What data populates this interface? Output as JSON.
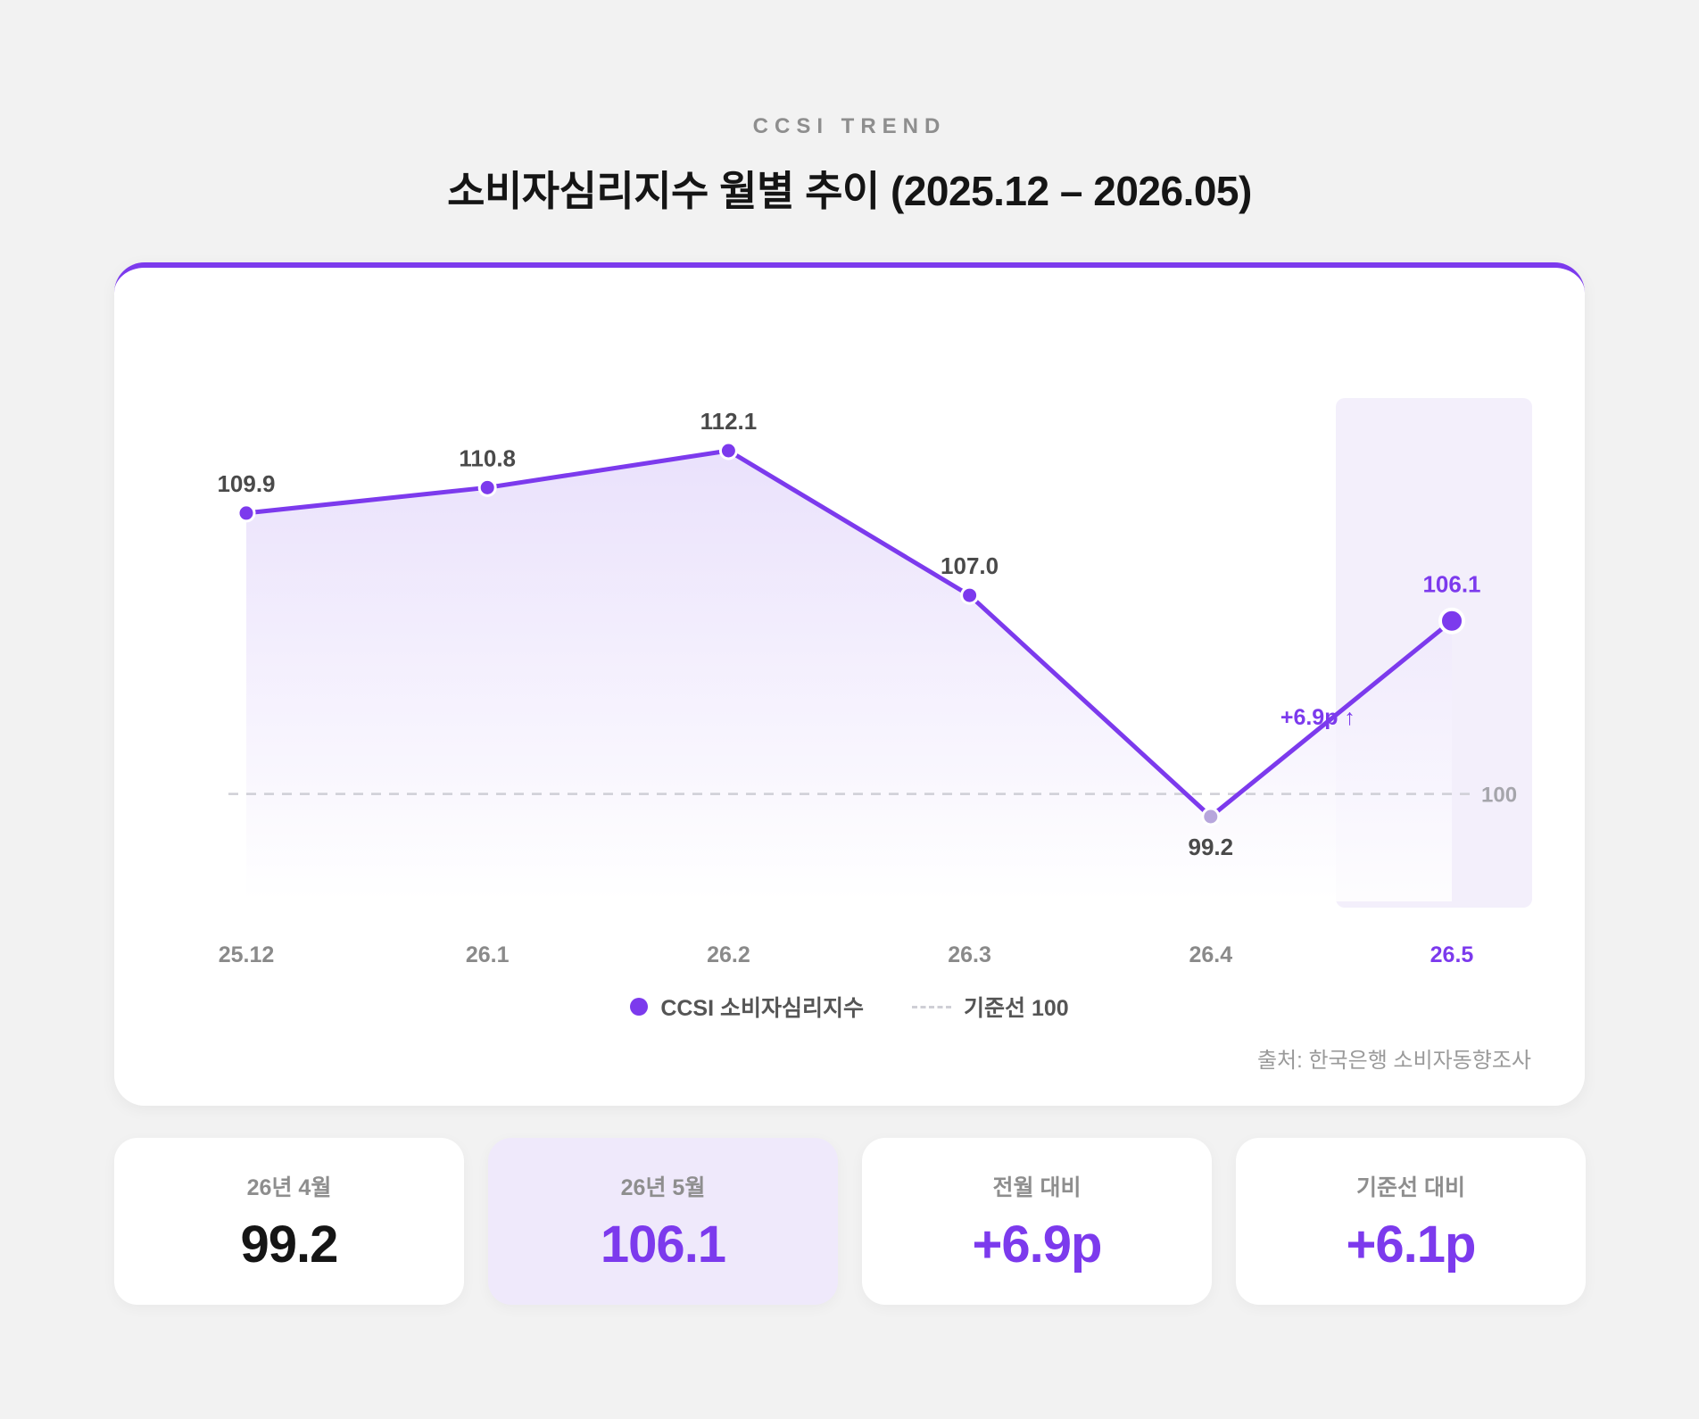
{
  "header": {
    "eyebrow": "CCSI TREND",
    "title": "소비자심리지수 월별 추이 (2025.12 – 2026.05)"
  },
  "colors": {
    "accent": "#7c3aed",
    "area_top": "#e6dcfb",
    "highlight_band": "#f3effb",
    "baseline": "#cfcfd6",
    "low_point": "#b7a6dc"
  },
  "chart_data": {
    "type": "line",
    "categories": [
      "25.12",
      "26.1",
      "26.2",
      "26.3",
      "26.4",
      "26.5"
    ],
    "series": [
      {
        "name": "CCSI 소비자심리지수",
        "values": [
          109.9,
          110.8,
          112.1,
          107.0,
          99.2,
          106.1
        ]
      }
    ],
    "data_labels": [
      "109.9",
      "110.8",
      "112.1",
      "107.0",
      "99.2",
      "106.1"
    ],
    "reference_line": {
      "value": 100,
      "label": "100"
    },
    "highlight_category": "26.5",
    "annotation": "+6.9p ↑",
    "ylim": [
      96,
      114
    ],
    "grid": false,
    "legend_position": "bottom"
  },
  "legend": {
    "series_label": "CCSI 소비자심리지수",
    "baseline_label": "기준선 100"
  },
  "source": "출처: 한국은행 소비자동향조사",
  "stats": [
    {
      "label": "26년 4월",
      "value": "99.2"
    },
    {
      "label": "26년 5월",
      "value": "106.1"
    },
    {
      "label": "전월 대비",
      "value": "+6.9p"
    },
    {
      "label": "기준선 대비",
      "value": "+6.1p"
    }
  ]
}
